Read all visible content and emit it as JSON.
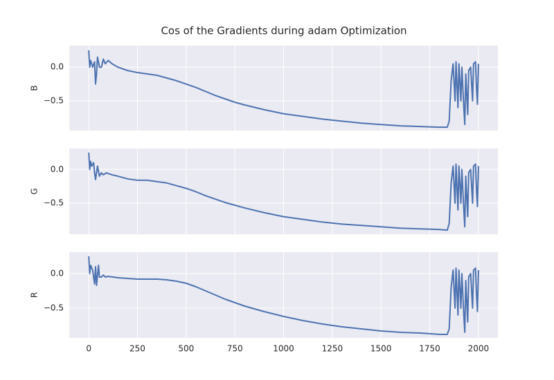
{
  "title": "Cos of the Gradients during adam Optimization",
  "chart_data": [
    {
      "type": "line",
      "ylabel": "B",
      "color": "#4c72b0",
      "grid": true,
      "xlim": [
        -100,
        2100
      ],
      "ylim": [
        -0.94,
        0.32
      ],
      "xticks": [
        0,
        250,
        500,
        750,
        1000,
        1250,
        1500,
        1750,
        2000
      ],
      "yticks": [
        {
          "value": -0.5,
          "label": "−0.5"
        },
        {
          "value": 0,
          "label": "0.0"
        }
      ],
      "x": [
        0,
        5,
        10,
        20,
        30,
        35,
        40,
        45,
        55,
        65,
        75,
        85,
        100,
        120,
        150,
        200,
        250,
        300,
        350,
        400,
        450,
        500,
        550,
        600,
        650,
        700,
        750,
        800,
        900,
        1000,
        1100,
        1200,
        1300,
        1400,
        1500,
        1600,
        1700,
        1800,
        1840,
        1850,
        1860,
        1870,
        1880,
        1885,
        1895,
        1900,
        1910,
        1915,
        1925,
        1930,
        1935,
        1945,
        1950,
        1960,
        1970,
        1975,
        1985,
        1990,
        1995,
        2000
      ],
      "values": [
        0.25,
        0.0,
        0.1,
        0.0,
        0.08,
        -0.25,
        -0.1,
        0.15,
        0.0,
        0.0,
        0.12,
        0.05,
        0.1,
        0.05,
        0.0,
        -0.05,
        -0.08,
        -0.1,
        -0.12,
        -0.16,
        -0.2,
        -0.25,
        -0.3,
        -0.36,
        -0.42,
        -0.47,
        -0.52,
        -0.56,
        -0.63,
        -0.69,
        -0.73,
        -0.77,
        -0.8,
        -0.83,
        -0.85,
        -0.87,
        -0.88,
        -0.89,
        -0.89,
        -0.8,
        -0.2,
        0.05,
        -0.5,
        0.08,
        -0.6,
        0.05,
        -0.5,
        0.0,
        -0.6,
        -0.85,
        -0.1,
        -0.7,
        -0.05,
        0.0,
        -0.5,
        0.05,
        0.08,
        -0.3,
        -0.55,
        0.05
      ]
    },
    {
      "type": "line",
      "ylabel": "G",
      "color": "#4c72b0",
      "grid": true,
      "xlim": [
        -100,
        2100
      ],
      "ylim": [
        -0.96,
        0.31
      ],
      "xticks": [
        0,
        250,
        500,
        750,
        1000,
        1250,
        1500,
        1750,
        2000
      ],
      "yticks": [
        {
          "value": -0.5,
          "label": "−0.5"
        },
        {
          "value": 0,
          "label": "0.0"
        }
      ],
      "x": [
        0,
        5,
        10,
        15,
        25,
        30,
        35,
        45,
        55,
        65,
        75,
        90,
        120,
        150,
        200,
        250,
        300,
        350,
        400,
        450,
        500,
        550,
        600,
        650,
        700,
        750,
        800,
        900,
        1000,
        1100,
        1200,
        1300,
        1400,
        1500,
        1600,
        1700,
        1800,
        1840,
        1850,
        1860,
        1870,
        1880,
        1885,
        1895,
        1900,
        1910,
        1915,
        1925,
        1930,
        1935,
        1945,
        1950,
        1960,
        1970,
        1975,
        1985,
        1990,
        1995,
        2000
      ],
      "values": [
        0.25,
        0.0,
        0.12,
        0.05,
        0.1,
        -0.05,
        -0.15,
        0.05,
        -0.1,
        -0.05,
        -0.08,
        -0.05,
        -0.08,
        -0.1,
        -0.14,
        -0.16,
        -0.16,
        -0.18,
        -0.2,
        -0.24,
        -0.28,
        -0.33,
        -0.39,
        -0.44,
        -0.49,
        -0.53,
        -0.57,
        -0.64,
        -0.7,
        -0.74,
        -0.78,
        -0.81,
        -0.83,
        -0.85,
        -0.87,
        -0.88,
        -0.89,
        -0.9,
        -0.8,
        -0.2,
        0.05,
        -0.5,
        0.08,
        -0.6,
        0.05,
        -0.5,
        0.0,
        -0.6,
        -0.85,
        -0.1,
        -0.7,
        -0.05,
        0.0,
        -0.5,
        0.05,
        0.08,
        -0.3,
        -0.55,
        0.05
      ]
    },
    {
      "type": "line",
      "ylabel": "R",
      "xlabel_ticks": true,
      "color": "#4c72b0",
      "grid": true,
      "xlim": [
        -100,
        2100
      ],
      "ylim": [
        -0.93,
        0.31
      ],
      "xticks": [
        0,
        250,
        500,
        750,
        1000,
        1250,
        1500,
        1750,
        2000
      ],
      "yticks": [
        {
          "value": -0.5,
          "label": "−0.5"
        },
        {
          "value": 0,
          "label": "0.0"
        }
      ],
      "x": [
        0,
        5,
        10,
        20,
        30,
        35,
        40,
        50,
        55,
        65,
        75,
        85,
        100,
        150,
        200,
        250,
        300,
        350,
        400,
        450,
        500,
        550,
        600,
        650,
        700,
        750,
        800,
        900,
        1000,
        1100,
        1200,
        1300,
        1400,
        1500,
        1600,
        1700,
        1800,
        1840,
        1850,
        1860,
        1870,
        1880,
        1885,
        1895,
        1900,
        1910,
        1915,
        1925,
        1930,
        1935,
        1945,
        1950,
        1960,
        1970,
        1975,
        1985,
        1990,
        1995,
        2000
      ],
      "values": [
        0.25,
        0.0,
        0.12,
        0.05,
        -0.15,
        0.1,
        -0.17,
        0.12,
        -0.05,
        -0.05,
        -0.02,
        -0.05,
        -0.04,
        -0.06,
        -0.07,
        -0.08,
        -0.08,
        -0.08,
        -0.09,
        -0.11,
        -0.14,
        -0.19,
        -0.25,
        -0.31,
        -0.37,
        -0.42,
        -0.47,
        -0.55,
        -0.62,
        -0.68,
        -0.73,
        -0.77,
        -0.8,
        -0.83,
        -0.85,
        -0.86,
        -0.88,
        -0.88,
        -0.8,
        -0.2,
        0.05,
        -0.5,
        0.08,
        -0.6,
        0.05,
        -0.5,
        0.0,
        -0.6,
        -0.85,
        -0.1,
        -0.7,
        -0.05,
        0.0,
        -0.5,
        0.05,
        0.08,
        -0.3,
        -0.55,
        0.05
      ]
    }
  ]
}
